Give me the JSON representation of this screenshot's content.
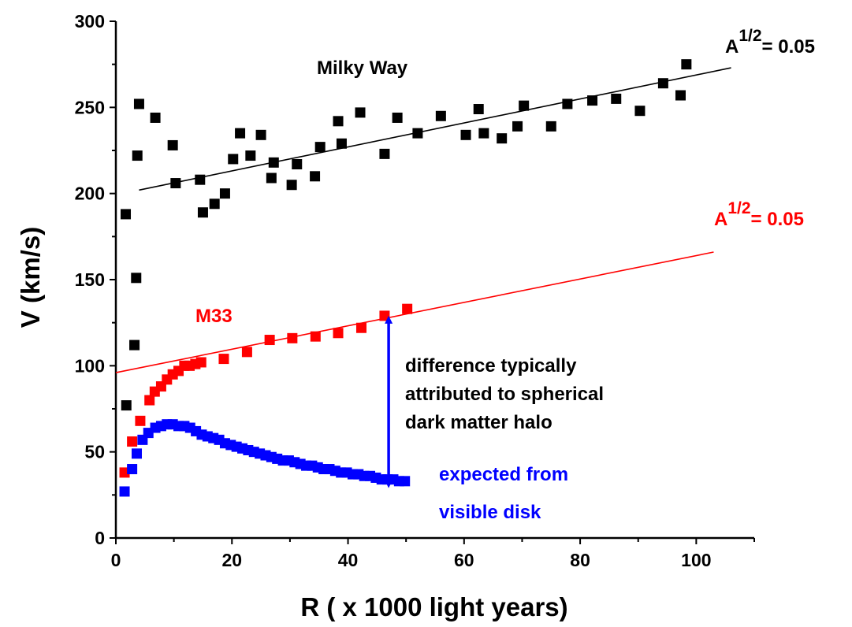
{
  "chart_data": {
    "type": "scatter",
    "xlabel": "R ( x 1000 light years)",
    "ylabel": "V (km/s)",
    "xlim": [
      0,
      110
    ],
    "ylim": [
      0,
      300
    ],
    "x_ticks": [
      "0",
      "20",
      "40",
      "60",
      "80",
      "100"
    ],
    "y_ticks": [
      "0",
      "50",
      "100",
      "150",
      "200",
      "250",
      "300"
    ],
    "grid": false,
    "series": [
      {
        "name": "Milky Way",
        "color": "#000000",
        "points": [
          [
            1.7,
            188
          ],
          [
            1.8,
            77
          ],
          [
            3.2,
            112
          ],
          [
            3.5,
            151
          ],
          [
            3.7,
            222
          ],
          [
            4,
            252
          ],
          [
            6.8,
            244
          ],
          [
            9.8,
            228
          ],
          [
            10.3,
            206
          ],
          [
            14.5,
            208
          ],
          [
            15,
            189
          ],
          [
            17,
            194
          ],
          [
            18.8,
            200
          ],
          [
            20.2,
            220
          ],
          [
            21.4,
            235
          ],
          [
            23.2,
            222
          ],
          [
            25,
            234
          ],
          [
            26.8,
            209
          ],
          [
            27.2,
            218
          ],
          [
            30.3,
            205
          ],
          [
            31.2,
            217
          ],
          [
            34.3,
            210
          ],
          [
            35.2,
            227
          ],
          [
            38.3,
            242
          ],
          [
            38.9,
            229
          ],
          [
            42.1,
            247
          ],
          [
            46.3,
            223
          ],
          [
            48.5,
            244
          ],
          [
            52,
            235
          ],
          [
            56,
            245
          ],
          [
            60.3,
            234
          ],
          [
            62.5,
            249
          ],
          [
            63.4,
            235
          ],
          [
            66.5,
            232
          ],
          [
            69.2,
            239
          ],
          [
            70.3,
            251
          ],
          [
            75,
            239
          ],
          [
            77.8,
            252
          ],
          [
            82.1,
            254
          ],
          [
            86.2,
            255
          ],
          [
            90.3,
            248
          ],
          [
            94.3,
            264
          ],
          [
            97.3,
            257
          ],
          [
            98.3,
            275
          ]
        ]
      },
      {
        "name": "M33",
        "color": "#ff0000",
        "points": [
          [
            1.5,
            38
          ],
          [
            2.8,
            56
          ],
          [
            4.2,
            68
          ],
          [
            5.8,
            80
          ],
          [
            6.7,
            85
          ],
          [
            7.8,
            88
          ],
          [
            8.8,
            92
          ],
          [
            9.8,
            95
          ],
          [
            10.8,
            97
          ],
          [
            11.8,
            100
          ],
          [
            12.7,
            100
          ],
          [
            13.7,
            101
          ],
          [
            14.7,
            102
          ],
          [
            18.6,
            104
          ],
          [
            22.6,
            108
          ],
          [
            26.5,
            115
          ],
          [
            30.4,
            116
          ],
          [
            34.4,
            117
          ],
          [
            38.3,
            119
          ],
          [
            42.3,
            122
          ],
          [
            46.3,
            129
          ],
          [
            50.2,
            133
          ]
        ]
      },
      {
        "name": "expected from visible disk",
        "color": "#0000ff",
        "points": [
          [
            1.5,
            27
          ],
          [
            2.8,
            40
          ],
          [
            3.6,
            49
          ],
          [
            4.6,
            57
          ],
          [
            5.6,
            61
          ],
          [
            6.8,
            64
          ],
          [
            7.8,
            65
          ],
          [
            8.8,
            66
          ],
          [
            9.8,
            66
          ],
          [
            10.8,
            65
          ],
          [
            11.8,
            65
          ],
          [
            12.8,
            64
          ],
          [
            13.8,
            62
          ],
          [
            14.8,
            60
          ],
          [
            15.8,
            59
          ],
          [
            16.8,
            58
          ],
          [
            17.8,
            57
          ],
          [
            18.8,
            55
          ],
          [
            19.8,
            54
          ],
          [
            20.8,
            53
          ],
          [
            21.8,
            52
          ],
          [
            22.8,
            51
          ],
          [
            23.8,
            50
          ],
          [
            24.8,
            49
          ],
          [
            25.8,
            48
          ],
          [
            26.8,
            47
          ],
          [
            27.8,
            46
          ],
          [
            28.8,
            45
          ],
          [
            29.8,
            45
          ],
          [
            30.8,
            44
          ],
          [
            31.8,
            43
          ],
          [
            32.8,
            42
          ],
          [
            33.8,
            42
          ],
          [
            34.8,
            41
          ],
          [
            35.8,
            40
          ],
          [
            36.8,
            40
          ],
          [
            37.8,
            39
          ],
          [
            38.8,
            38
          ],
          [
            39.8,
            38
          ],
          [
            40.8,
            37
          ],
          [
            41.8,
            37
          ],
          [
            42.8,
            36
          ],
          [
            43.8,
            36
          ],
          [
            44.8,
            35
          ],
          [
            45.8,
            34
          ],
          [
            46.8,
            34
          ],
          [
            47.8,
            34
          ],
          [
            48.8,
            33
          ],
          [
            49.8,
            33
          ]
        ]
      }
    ],
    "fit_lines": [
      {
        "label": "A",
        "exponent": "1/2",
        "value_text": "= 0.05",
        "color": "#000000",
        "x": [
          4,
          106
        ],
        "y": [
          202,
          273
        ]
      },
      {
        "label": "A",
        "exponent": "1/2",
        "value_text": "= 0.05",
        "color": "#ff0000",
        "x": [
          0,
          103
        ],
        "y": [
          96,
          166
        ]
      }
    ],
    "annotations": {
      "milky_way": "Milky Way",
      "m33": "M33",
      "difference_lines": [
        "difference typically",
        "attributed to spherical",
        "dark matter halo"
      ],
      "expected_lines": [
        "expected from",
        "visible disk"
      ]
    },
    "arrow": {
      "x": 47,
      "y_from": 34,
      "y_to": 124,
      "color": "#0000ff"
    }
  }
}
